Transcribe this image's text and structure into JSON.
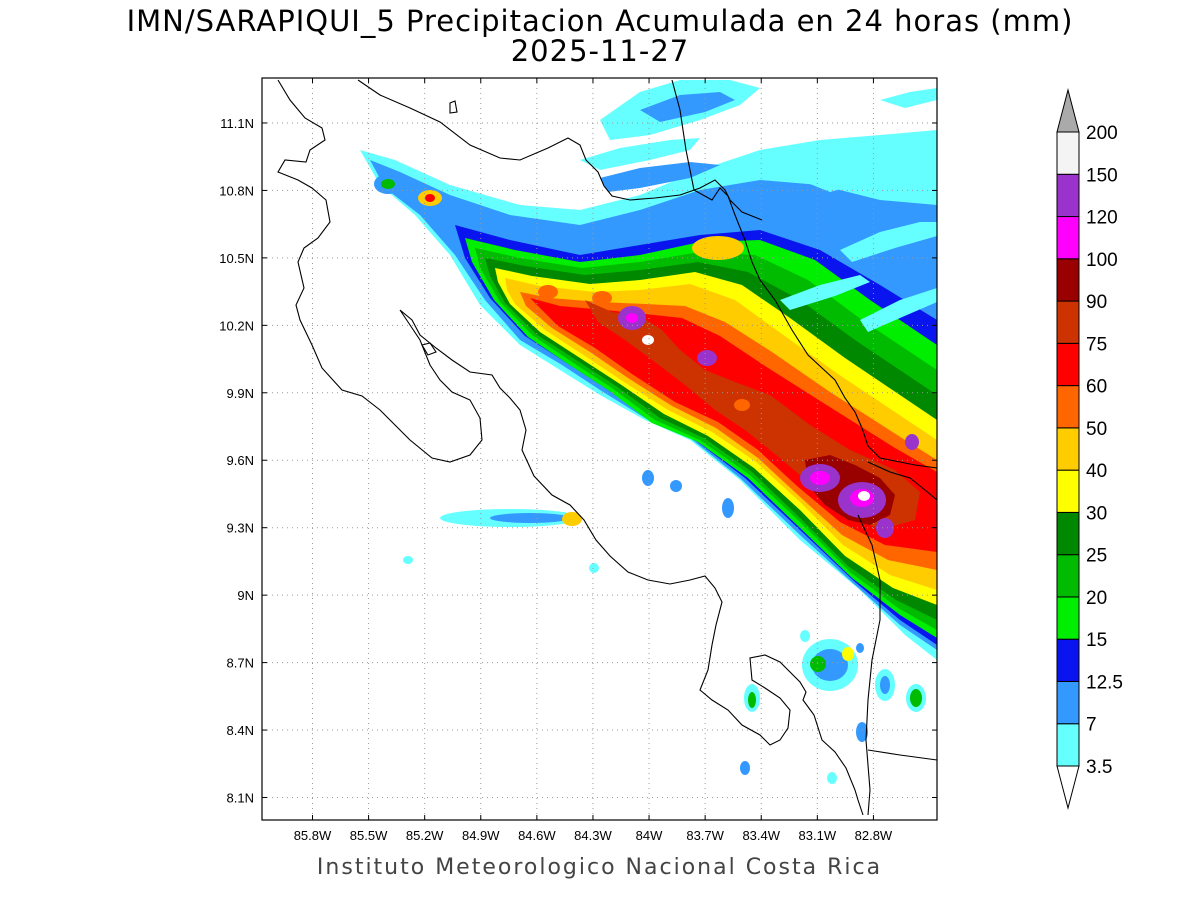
{
  "header": {
    "title": "IMN/SARAPIQUI_5 Precipitacion Acumulada en 24 horas (mm)",
    "date": "2025-11-27"
  },
  "footer": {
    "credit": "Instituto Meteorologico Nacional Costa Rica"
  },
  "map": {
    "lon_range": [
      -86.07,
      -82.46
    ],
    "lat_range": [
      8.0,
      11.3
    ],
    "lon_ticks": [
      {
        "value": -85.8,
        "label": "85.8W"
      },
      {
        "value": -85.5,
        "label": "85.5W"
      },
      {
        "value": -85.2,
        "label": "85.2W"
      },
      {
        "value": -84.9,
        "label": "84.9W"
      },
      {
        "value": -84.6,
        "label": "84.6W"
      },
      {
        "value": -84.3,
        "label": "84.3W"
      },
      {
        "value": -84.0,
        "label": "84W"
      },
      {
        "value": -83.7,
        "label": "83.7W"
      },
      {
        "value": -83.4,
        "label": "83.4W"
      },
      {
        "value": -83.1,
        "label": "83.1W"
      },
      {
        "value": -82.8,
        "label": "82.8W"
      }
    ],
    "lat_ticks": [
      {
        "value": 11.1,
        "label": "11.1N"
      },
      {
        "value": 10.8,
        "label": "10.8N"
      },
      {
        "value": 10.5,
        "label": "10.5N"
      },
      {
        "value": 10.2,
        "label": "10.2N"
      },
      {
        "value": 9.9,
        "label": "9.9N"
      },
      {
        "value": 9.6,
        "label": "9.6N"
      },
      {
        "value": 9.3,
        "label": "9.3N"
      },
      {
        "value": 9.0,
        "label": "9N"
      },
      {
        "value": 8.7,
        "label": "8.7N"
      },
      {
        "value": 8.4,
        "label": "8.4N"
      },
      {
        "value": 8.1,
        "label": "8.1N"
      }
    ],
    "grid": true
  },
  "colorbar": {
    "levels": [
      {
        "label": "3.5",
        "color": "#66ffff"
      },
      {
        "label": "7",
        "color": "#3399ff"
      },
      {
        "label": "12.5",
        "color": "#0a14ee"
      },
      {
        "label": "15",
        "color": "#00ee00"
      },
      {
        "label": "20",
        "color": "#00bb00"
      },
      {
        "label": "25",
        "color": "#008800"
      },
      {
        "label": "30",
        "color": "#ffff00"
      },
      {
        "label": "40",
        "color": "#ffcc00"
      },
      {
        "label": "50",
        "color": "#ff6600"
      },
      {
        "label": "60",
        "color": "#ff0000"
      },
      {
        "label": "75",
        "color": "#cc3300"
      },
      {
        "label": "90",
        "color": "#990000"
      },
      {
        "label": "100",
        "color": "#ff00ff"
      },
      {
        "label": "120",
        "color": "#9933cc"
      },
      {
        "label": "150",
        "color": "#f4f4f4"
      },
      {
        "label": "200",
        "color": "#aaaaaa"
      }
    ]
  }
}
